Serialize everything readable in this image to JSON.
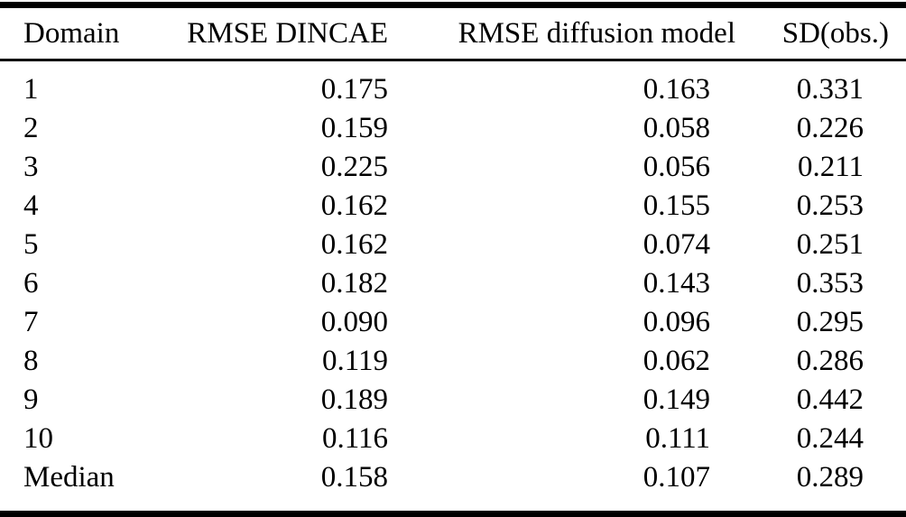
{
  "colors": {
    "text": "#000000",
    "background": "#ffffff",
    "rule": "#000000"
  },
  "table": {
    "columns": [
      "Domain",
      "RMSE DINCAE",
      "RMSE diffusion model",
      "SD(obs.)"
    ],
    "rows": [
      [
        "1",
        "0.175",
        "0.163",
        "0.331"
      ],
      [
        "2",
        "0.159",
        "0.058",
        "0.226"
      ],
      [
        "3",
        "0.225",
        "0.056",
        "0.211"
      ],
      [
        "4",
        "0.162",
        "0.155",
        "0.253"
      ],
      [
        "5",
        "0.162",
        "0.074",
        "0.251"
      ],
      [
        "6",
        "0.182",
        "0.143",
        "0.353"
      ],
      [
        "7",
        "0.090",
        "0.096",
        "0.295"
      ],
      [
        "8",
        "0.119",
        "0.062",
        "0.286"
      ],
      [
        "9",
        "0.189",
        "0.149",
        "0.442"
      ],
      [
        "10",
        "0.116",
        "0.111",
        "0.244"
      ],
      [
        "Median",
        "0.158",
        "0.107",
        "0.289"
      ]
    ]
  }
}
